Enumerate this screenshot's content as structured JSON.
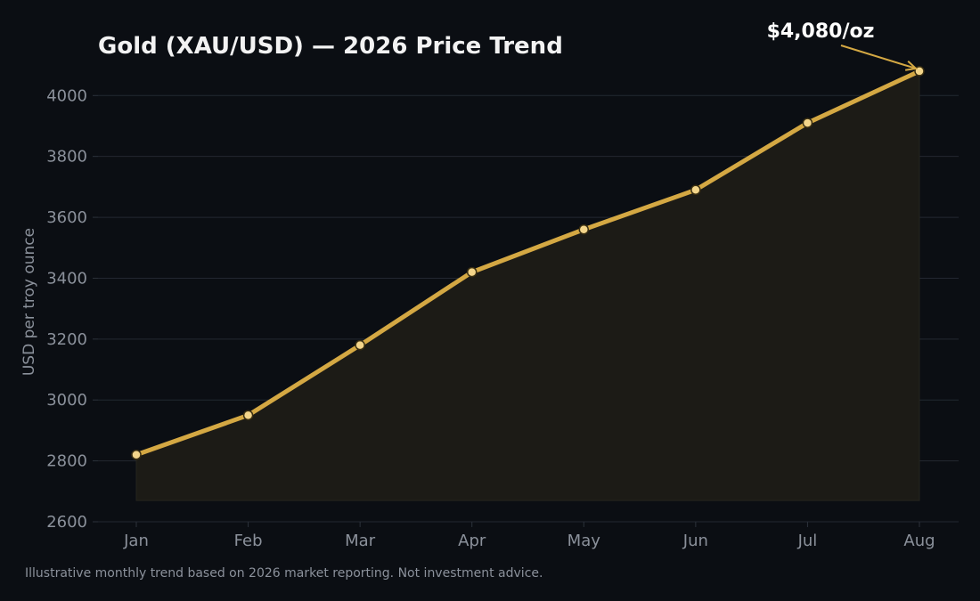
{
  "chart_data": {
    "type": "line",
    "title": "Gold (XAU/USD) — 2026 Price Trend",
    "xlabel": "",
    "ylabel": "USD per troy ounce",
    "categories": [
      "Jan",
      "Feb",
      "Mar",
      "Apr",
      "May",
      "Jun",
      "Jul",
      "Aug"
    ],
    "series": [
      {
        "values": [
          2820,
          2950,
          3180,
          3420,
          3560,
          3690,
          3910,
          4080
        ]
      }
    ],
    "ylim": [
      2600,
      4150
    ],
    "yticks": [
      2600,
      2800,
      3000,
      3200,
      3400,
      3600,
      3800,
      4000
    ],
    "grid": true,
    "area_fill": true,
    "area_baseline": 2670,
    "annotation": {
      "text": "$4,080/oz",
      "target_category": "Aug",
      "target_value": 4080
    },
    "footnote": "Illustrative monthly trend based on 2026 market reporting. Not investment advice.",
    "colors": {
      "background": "#0b0e13",
      "line": "#d4a843",
      "marker_fill": "#f3d58a",
      "marker_edge": "#3a2f12",
      "area": "#1c1b16",
      "grid": "#232831",
      "tick_text": "#8b919b",
      "title_text": "#f2f2f2"
    }
  }
}
